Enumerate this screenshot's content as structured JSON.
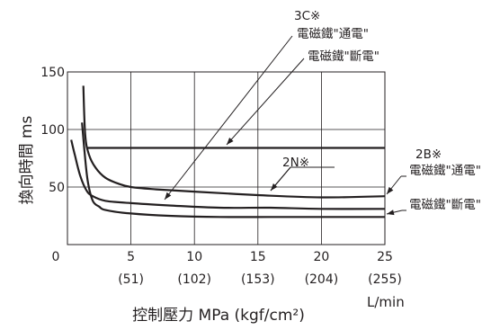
{
  "chart_data": {
    "type": "line",
    "xlabel": "控制壓力 MPa (kgf/cm²)",
    "ylabel": "換向時間 ms",
    "x_unit_label": "L/min",
    "xlim": [
      0,
      25
    ],
    "ylim": [
      0,
      150
    ],
    "x_ticks": [
      {
        "value": 0,
        "label": "0",
        "sub": ""
      },
      {
        "value": 5,
        "label": "5",
        "sub": "(51)"
      },
      {
        "value": 10,
        "label": "10",
        "sub": "(102)"
      },
      {
        "value": 15,
        "label": "15",
        "sub": "(153)"
      },
      {
        "value": 20,
        "label": "20",
        "sub": "(204)"
      },
      {
        "value": 25,
        "label": "25",
        "sub": "(255)"
      }
    ],
    "y_ticks": [
      50,
      100,
      150
    ],
    "grid": true,
    "series": [
      {
        "id": "3c-on",
        "points": [
          [
            1.25,
            138
          ],
          [
            1.4,
            95
          ],
          [
            1.7,
            78
          ],
          [
            2.2,
            67
          ],
          [
            3,
            58
          ],
          [
            4,
            53
          ],
          [
            5,
            50
          ],
          [
            7,
            48
          ],
          [
            10,
            46
          ],
          [
            15,
            43
          ],
          [
            20,
            41
          ],
          [
            25,
            42
          ]
        ]
      },
      {
        "id": "3c-off",
        "points": [
          [
            0.3,
            91
          ],
          [
            0.6,
            77
          ],
          [
            1.0,
            60
          ],
          [
            1.5,
            47
          ],
          [
            2,
            42
          ],
          [
            3,
            38
          ],
          [
            5,
            36
          ],
          [
            8,
            34
          ],
          [
            12,
            32
          ],
          [
            16,
            32
          ],
          [
            20,
            31
          ],
          [
            25,
            31
          ]
        ]
      },
      {
        "id": "2n",
        "points": [
          [
            1.5,
            84
          ],
          [
            25,
            84
          ]
        ]
      },
      {
        "id": "2b-on",
        "points": [
          [
            1.15,
            106
          ],
          [
            1.35,
            80
          ],
          [
            1.6,
            55
          ],
          [
            2,
            38
          ],
          [
            2.5,
            33
          ],
          [
            3,
            30
          ],
          [
            5,
            27
          ],
          [
            8,
            25
          ],
          [
            12,
            24
          ],
          [
            16,
            24
          ],
          [
            20,
            24
          ],
          [
            25,
            24
          ]
        ]
      }
    ],
    "annotations": {
      "3c": "3C※",
      "3c_on": "電磁鐵\"通電\"",
      "3c_off": "電磁鐵\"斷電\"",
      "2n": "2N※",
      "2b": "2B※",
      "2b_on": "電磁鐵\"通電\"",
      "2b_off": "電磁鐵\"斷電\""
    }
  }
}
